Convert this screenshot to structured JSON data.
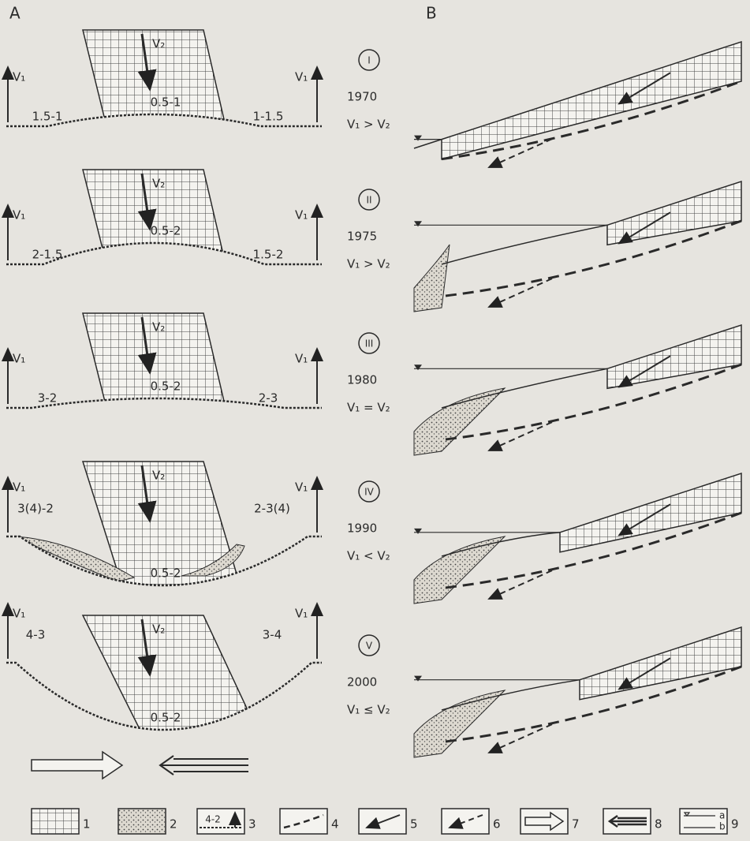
{
  "labels": {
    "a": "A",
    "b": "B"
  },
  "rows": [
    {
      "v1_left": "V₁",
      "v1_right": "V₁",
      "v2": "V₂",
      "left": "1.5-1",
      "center": "0.5-1",
      "right": "1-1.5",
      "numeral": "I",
      "year": "1970",
      "relation": "V₁ > V₂"
    },
    {
      "v1_left": "V₁",
      "v1_right": "V₁",
      "v2": "V₂",
      "left": "2-1.5",
      "center": "0.5-2",
      "right": "1.5-2",
      "numeral": "II",
      "year": "1975",
      "relation": "V₁ > V₂"
    },
    {
      "v1_left": "V₁",
      "v1_right": "V₁",
      "v2": "V₂",
      "left": "3-2",
      "center": "0.5-2",
      "right": "2-3",
      "numeral": "III",
      "year": "1980",
      "relation": "V₁ = V₂"
    },
    {
      "v1_left": "V₁",
      "v1_right": "V₁",
      "v2": "V₂",
      "left": "3(4)-2",
      "center": "0.5-2",
      "right": "2-3(4)",
      "numeral": "IV",
      "year": "1990",
      "relation": "V₁ < V₂"
    },
    {
      "v1_left": "V₁",
      "v1_right": "V₁",
      "v2": "V₂",
      "left": "4-3",
      "center": "0.5-2",
      "right": "3-4",
      "numeral": "V",
      "year": "2000",
      "relation": "V₁ ≤ V₂"
    }
  ],
  "legend": [
    {
      "number": "1"
    },
    {
      "number": "2"
    },
    {
      "number": "3",
      "label": "4-2"
    },
    {
      "number": "4"
    },
    {
      "number": "5"
    },
    {
      "number": "6"
    },
    {
      "number": "7"
    },
    {
      "number": "8"
    },
    {
      "number": "9",
      "a": "a",
      "b": "b"
    }
  ]
}
